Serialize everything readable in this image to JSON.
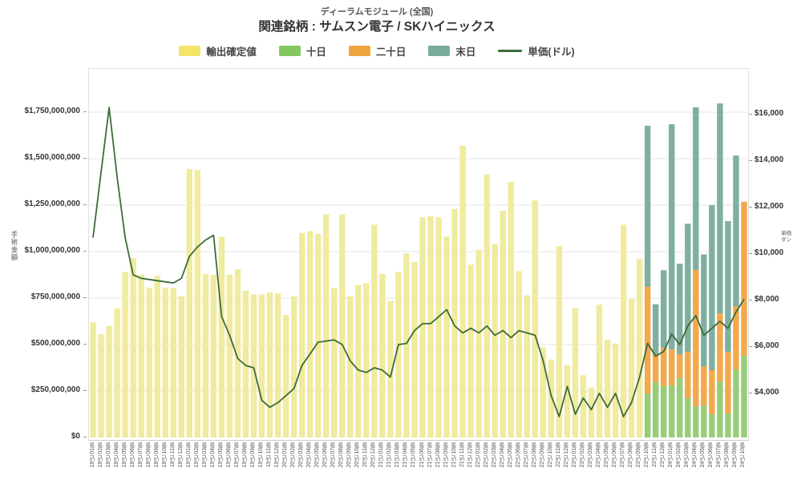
{
  "header": {
    "title": "ディーラムモジュール (全国)",
    "subtitle": "関連銘柄 : サムスン電子 / SKハイニックス"
  },
  "legend": [
    {
      "label": "輸出確定値",
      "color": "#f3e667",
      "type": "box"
    },
    {
      "label": "十日",
      "color": "#85c75f",
      "type": "box"
    },
    {
      "label": "二十日",
      "color": "#f0a43f",
      "type": "box"
    },
    {
      "label": "末日",
      "color": "#78ab9c",
      "type": "box"
    },
    {
      "label": "単価(ドル)",
      "color": "#3d6b39",
      "type": "line"
    }
  ],
  "axes": {
    "left": {
      "title": "手術金額",
      "ticks": [
        "$1,750,000,000",
        "$1,500,000,000",
        "$1,250,000,000",
        "$1,000,000,000",
        "$750,000,000",
        "$500,000,000",
        "$250,000,000",
        "$0"
      ]
    },
    "right": {
      "title": "単価ダン",
      "ticks": [
        "$16,000",
        "$14,000",
        "$12,000",
        "$10,000",
        "$8,000",
        "$6,000",
        "$4,000"
      ]
    }
  },
  "chart_data": {
    "type": "combo: stacked bars (left axis, export amount USD) + line (right axis, unit price USD)",
    "title": "ディーラムモジュール (全国)",
    "subtitle": "関連銘柄 : サムスン電子 / SKハイニックス",
    "bar_unit": "USD millions (left axis)",
    "line_unit": "USD (right axis)",
    "left_axis": {
      "label": "手術金額",
      "min": 0,
      "max": 1750000000,
      "step": 250000000,
      "grid": true
    },
    "right_axis": {
      "label": "単価ダン",
      "min": 4000,
      "max": 16000,
      "step": 2000
    },
    "legend_position": "top-center",
    "months": [
      "18년 01월",
      "18년 02월",
      "18년 03월",
      "18년 04월",
      "18년 05월",
      "18년 06월",
      "18년 07월",
      "18년 08월",
      "18년 09월",
      "18년 10월",
      "18년 11월",
      "18년 12월",
      "19년 01월",
      "19년 02월",
      "19년 03월",
      "19년 04월",
      "19년 05월",
      "19년 06월",
      "19년 07월",
      "19년 08월",
      "19년 09월",
      "19년 10월",
      "19년 11월",
      "19년 12월",
      "20년 01월",
      "20년 02월",
      "20년 03월",
      "20년 04월",
      "20년 05월",
      "20년 06월",
      "20년 07월",
      "20년 08월",
      "20년 09월",
      "20년 10월",
      "20년 11월",
      "20년 12월",
      "21년 01월",
      "21년 02월",
      "21년 03월",
      "21년 04월",
      "21년 05월",
      "21년 06월",
      "21년 07월",
      "21년 08월",
      "21년 09월",
      "21년 10월",
      "21년 11월",
      "21년 12월",
      "22년 01월",
      "22년 02월",
      "22년 03월",
      "22년 04월",
      "22년 05월",
      "22년 06월",
      "22년 07월",
      "22년 08월",
      "22년 09월",
      "22년 10월",
      "22년 11월",
      "22년 12월",
      "23년 01월",
      "23년 02월",
      "23년 03월",
      "23년 04월",
      "23년 05월",
      "23년 06월",
      "23년 07월",
      "23년 08월",
      "23년 09월",
      "23년 10월",
      "23년 11월",
      "23년 12월",
      "24년 01월",
      "24년 02월",
      "24년 03월",
      "24년 04월",
      "24년 05월",
      "24년 06월",
      "24년 07월",
      "24년 08월",
      "24년 09월",
      "24년 10월"
    ],
    "series": [
      {
        "name": "輸出確定値",
        "type": "bar",
        "color": "#f0eb9e",
        "start_index": 0,
        "values": [
          620,
          555,
          600,
          695,
          890,
          965,
          875,
          805,
          870,
          805,
          805,
          760,
          1445,
          1440,
          880,
          875,
          1080,
          875,
          905,
          790,
          770,
          770,
          780,
          775,
          660,
          760,
          1100,
          1110,
          1095,
          1200,
          805,
          1200,
          760,
          820,
          830,
          1145,
          880,
          735,
          890,
          990,
          945,
          1185,
          1190,
          1185,
          1080,
          1230,
          1570,
          930,
          1010,
          1415,
          1040,
          1220,
          1375,
          895,
          765,
          1275,
          485,
          420,
          1030,
          390,
          695,
          335,
          270,
          715,
          525,
          505,
          1145,
          745,
          960
        ]
      },
      {
        "name": "十日",
        "type": "bar-stack",
        "color": "#98cd78",
        "start_index": 69,
        "values": [
          237,
          297,
          276,
          280,
          319,
          211,
          168,
          172,
          125,
          302,
          129,
          366,
          440
        ]
      },
      {
        "name": "二十日",
        "type": "bar-stack",
        "color": "#f2a94b",
        "start_index": 69,
        "values": [
          573,
          151,
          207,
          194,
          129,
          250,
          733,
          211,
          237,
          366,
          332,
          340,
          828
        ]
      },
      {
        "name": "末日",
        "type": "bar-stack",
        "color": "#7fafa0",
        "start_index": 69,
        "values": [
          867,
          269,
          417,
          1211,
          487,
          689,
          875,
          602,
          888,
          1129,
          703,
          811,
          0
        ]
      },
      {
        "name": "単価(ドル)",
        "type": "line",
        "color": "#3d6b39",
        "axis": "right",
        "start_index": 0,
        "values": [
          10700,
          13500,
          16300,
          13300,
          10700,
          9100,
          8950,
          8900,
          8850,
          8800,
          8750,
          8950,
          9900,
          10300,
          10600,
          10800,
          7300,
          6500,
          5500,
          5200,
          5100,
          3700,
          3400,
          3600,
          3900,
          4200,
          5200,
          5700,
          6200,
          6250,
          6300,
          6100,
          5400,
          5000,
          4900,
          5100,
          5000,
          4700,
          6100,
          6150,
          6700,
          7000,
          7000,
          7300,
          7600,
          6900,
          6600,
          6800,
          6600,
          6900,
          6500,
          6700,
          6400,
          6700,
          6600,
          6500,
          5400,
          3900,
          3000,
          4300,
          3100,
          3800,
          3300,
          4000,
          3400,
          4000,
          3000,
          3600,
          4700,
          6150,
          5600,
          5800,
          6550,
          6100,
          6900,
          7350,
          6500,
          6800,
          7100,
          6800,
          7500,
          8050
        ]
      }
    ]
  }
}
